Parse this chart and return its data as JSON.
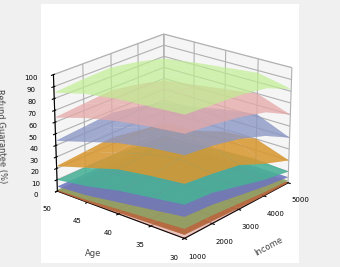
{
  "xlabel": "Income",
  "ylabel": "Age",
  "zlabel": "Refund Guarantee (%)",
  "age_values": [
    30,
    35,
    40,
    45,
    50
  ],
  "income_values": [
    1000,
    2000,
    3000,
    4000,
    5000
  ],
  "layers": [
    {
      "name": "red",
      "color": "#c0392b",
      "alpha": 0.85,
      "z_bottom": [
        [
          0,
          0,
          0,
          0,
          0
        ],
        [
          0,
          0,
          0,
          0,
          0
        ],
        [
          0,
          0,
          0,
          0,
          0
        ],
        [
          0,
          0,
          0,
          0,
          0
        ],
        [
          0,
          0,
          0,
          0,
          0
        ]
      ],
      "z_top": [
        [
          3,
          2,
          1,
          0,
          0
        ],
        [
          2,
          2,
          1,
          0,
          0
        ],
        [
          1,
          1,
          1,
          0,
          0
        ],
        [
          0,
          0,
          0,
          0,
          0
        ],
        [
          0,
          0,
          0,
          0,
          0
        ]
      ]
    },
    {
      "name": "lime",
      "color": "#8BC34A",
      "alpha": 0.85,
      "z_bottom": [
        [
          3,
          2,
          1,
          0,
          0
        ],
        [
          2,
          2,
          1,
          0,
          0
        ],
        [
          1,
          1,
          1,
          0,
          0
        ],
        [
          0,
          0,
          0,
          0,
          0
        ],
        [
          0,
          0,
          0,
          0,
          0
        ]
      ],
      "z_top": [
        [
          8,
          7,
          5,
          3,
          2
        ],
        [
          6,
          6,
          5,
          3,
          2
        ],
        [
          4,
          4,
          4,
          2,
          1
        ],
        [
          2,
          2,
          2,
          1,
          1
        ],
        [
          1,
          1,
          1,
          1,
          1
        ]
      ]
    },
    {
      "name": "purple",
      "color": "#9B59B6",
      "alpha": 0.85,
      "z_bottom": [
        [
          8,
          7,
          5,
          3,
          2
        ],
        [
          6,
          6,
          5,
          3,
          2
        ],
        [
          4,
          4,
          4,
          2,
          1
        ],
        [
          2,
          2,
          2,
          1,
          1
        ],
        [
          1,
          1,
          1,
          1,
          1
        ]
      ],
      "z_top": [
        [
          18,
          16,
          12,
          8,
          5
        ],
        [
          14,
          14,
          12,
          8,
          5
        ],
        [
          10,
          10,
          9,
          6,
          4
        ],
        [
          6,
          6,
          6,
          4,
          3
        ],
        [
          4,
          4,
          4,
          3,
          3
        ]
      ]
    },
    {
      "name": "cyan",
      "color": "#00BCD4",
      "alpha": 0.85,
      "z_bottom": [
        [
          18,
          16,
          12,
          8,
          5
        ],
        [
          14,
          14,
          12,
          8,
          5
        ],
        [
          10,
          10,
          9,
          6,
          4
        ],
        [
          6,
          6,
          6,
          4,
          3
        ],
        [
          4,
          4,
          4,
          3,
          3
        ]
      ],
      "z_top": [
        [
          28,
          26,
          20,
          14,
          10
        ],
        [
          24,
          24,
          20,
          16,
          12
        ],
        [
          20,
          20,
          18,
          14,
          10
        ],
        [
          14,
          14,
          13,
          10,
          8
        ],
        [
          10,
          10,
          10,
          8,
          7
        ]
      ]
    },
    {
      "name": "orange",
      "color": "#FF9800",
      "alpha": 0.85,
      "z_bottom": [
        [
          28,
          26,
          20,
          14,
          10
        ],
        [
          24,
          24,
          20,
          16,
          12
        ],
        [
          20,
          20,
          18,
          14,
          10
        ],
        [
          14,
          14,
          13,
          10,
          8
        ],
        [
          10,
          10,
          10,
          8,
          7
        ]
      ],
      "z_top": [
        [
          45,
          42,
          38,
          28,
          20
        ],
        [
          42,
          45,
          50,
          42,
          30
        ],
        [
          38,
          40,
          44,
          38,
          28
        ],
        [
          30,
          32,
          34,
          28,
          20
        ],
        [
          22,
          24,
          26,
          22,
          18
        ]
      ]
    },
    {
      "name": "blue",
      "color": "#6699CC",
      "alpha": 0.75,
      "z_bottom": [
        [
          45,
          42,
          38,
          28,
          20
        ],
        [
          42,
          45,
          50,
          42,
          30
        ],
        [
          38,
          40,
          44,
          38,
          28
        ],
        [
          30,
          32,
          34,
          28,
          20
        ],
        [
          22,
          24,
          26,
          22,
          18
        ]
      ],
      "z_top": [
        [
          68,
          65,
          60,
          52,
          40
        ],
        [
          65,
          68,
          72,
          65,
          52
        ],
        [
          60,
          62,
          66,
          58,
          48
        ],
        [
          52,
          54,
          56,
          50,
          42
        ],
        [
          44,
          46,
          48,
          44,
          38
        ]
      ]
    },
    {
      "name": "pink",
      "color": "#F48FB1",
      "alpha": 0.7,
      "z_bottom": [
        [
          68,
          65,
          60,
          52,
          40
        ],
        [
          65,
          68,
          72,
          65,
          52
        ],
        [
          60,
          62,
          66,
          58,
          48
        ],
        [
          52,
          54,
          56,
          50,
          42
        ],
        [
          44,
          46,
          48,
          44,
          38
        ]
      ],
      "z_top": [
        [
          85,
          82,
          78,
          72,
          60
        ],
        [
          82,
          85,
          88,
          82,
          70
        ],
        [
          78,
          80,
          82,
          76,
          66
        ],
        [
          72,
          74,
          76,
          70,
          62
        ],
        [
          64,
          66,
          68,
          64,
          58
        ]
      ]
    },
    {
      "name": "lightgreen",
      "color": "#BFEE90",
      "alpha": 0.7,
      "z_bottom": [
        [
          85,
          82,
          78,
          72,
          60
        ],
        [
          82,
          85,
          88,
          82,
          70
        ],
        [
          78,
          80,
          82,
          76,
          66
        ],
        [
          72,
          74,
          76,
          70,
          62
        ],
        [
          64,
          66,
          68,
          64,
          58
        ]
      ],
      "z_top": [
        [
          100,
          98,
          96,
          92,
          82
        ],
        [
          98,
          100,
          100,
          98,
          88
        ],
        [
          96,
          98,
          98,
          94,
          85
        ],
        [
          92,
          94,
          95,
          90,
          82
        ],
        [
          85,
          87,
          88,
          84,
          78
        ]
      ]
    }
  ],
  "elev": 22,
  "azim": -140,
  "xlim": [
    1000,
    5000
  ],
  "ylim": [
    30,
    50
  ],
  "zlim": [
    0,
    100
  ],
  "xticks": [
    1000,
    2000,
    3000,
    4000,
    5000
  ],
  "yticks": [
    30,
    35,
    40,
    45,
    50
  ],
  "zticks": [
    0,
    10,
    20,
    30,
    40,
    50,
    60,
    70,
    80,
    90,
    100
  ],
  "pane_color": [
    0.925,
    0.925,
    0.925,
    1.0
  ],
  "floor_color": [
    0.94,
    0.93,
    0.88,
    1.0
  ],
  "fig_facecolor": "#f0f0f0"
}
